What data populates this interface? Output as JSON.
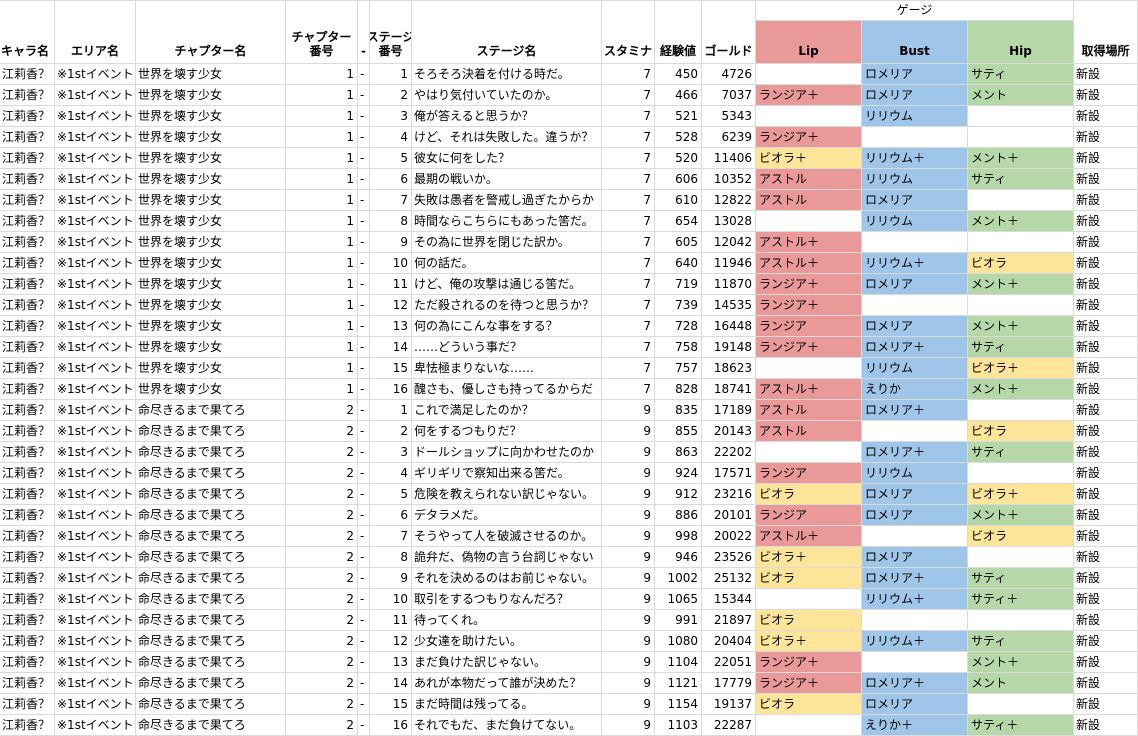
{
  "header": {
    "gauge_title": "ゲージ",
    "columns": {
      "chara": "キャラ名",
      "area": "エリア名",
      "chapter": "チャプター名",
      "chapter_no": "チャプター\n番号",
      "dash": "-",
      "stage_no": "ステージ\n番号",
      "stage": "ステージ名",
      "stamina": "スタミナ",
      "exp": "経験値",
      "gold": "ゴールド",
      "lip": "Lip",
      "bust": "Bust",
      "hip": "Hip",
      "acquire": "取得場所"
    }
  },
  "colors": {
    "lip": "#ea9999",
    "bust": "#9fc5e8",
    "hip": "#b6d7a8",
    "yellow": "#ffe599",
    "grid": "#dadada"
  },
  "rows": [
    {
      "chara": "江莉香？",
      "area": "※1stイベント",
      "chapter": "世界を壊す少女",
      "ch": "1",
      "dash": "-",
      "st": "1",
      "stage": "そろそろ決着を付ける時だ。",
      "sta": "7",
      "exp": "450",
      "gold": "4726",
      "lip": "",
      "lipc": "",
      "bust": "ロメリア",
      "bustc": "b",
      "hip": "サティ",
      "hipc": "h",
      "acq": "新設"
    },
    {
      "chara": "江莉香？",
      "area": "※1stイベント",
      "chapter": "世界を壊す少女",
      "ch": "1",
      "dash": "-",
      "st": "2",
      "stage": "やはり気付いていたのか。",
      "sta": "7",
      "exp": "466",
      "gold": "7037",
      "lip": "ランジア＋",
      "lipc": "l",
      "bust": "ロメリア",
      "bustc": "b",
      "hip": "メント",
      "hipc": "h",
      "acq": "新設"
    },
    {
      "chara": "江莉香？",
      "area": "※1stイベント",
      "chapter": "世界を壊す少女",
      "ch": "1",
      "dash": "-",
      "st": "3",
      "stage": "俺が答えると思うか？",
      "sta": "7",
      "exp": "521",
      "gold": "5343",
      "lip": "",
      "lipc": "",
      "bust": "リリウム",
      "bustc": "b",
      "hip": "",
      "hipc": "",
      "acq": "新設"
    },
    {
      "chara": "江莉香？",
      "area": "※1stイベント",
      "chapter": "世界を壊す少女",
      "ch": "1",
      "dash": "-",
      "st": "4",
      "stage": "けど、それは失敗した。違うか？",
      "sta": "7",
      "exp": "528",
      "gold": "6239",
      "lip": "ランジア＋",
      "lipc": "l",
      "bust": "",
      "bustc": "",
      "hip": "",
      "hipc": "",
      "acq": "新設"
    },
    {
      "chara": "江莉香？",
      "area": "※1stイベント",
      "chapter": "世界を壊す少女",
      "ch": "1",
      "dash": "-",
      "st": "5",
      "stage": "彼女に何をした？",
      "sta": "7",
      "exp": "520",
      "gold": "11406",
      "lip": "ビオラ＋",
      "lipc": "y",
      "bust": "リリウム＋",
      "bustc": "b",
      "hip": "メント＋",
      "hipc": "h",
      "acq": "新設"
    },
    {
      "chara": "江莉香？",
      "area": "※1stイベント",
      "chapter": "世界を壊す少女",
      "ch": "1",
      "dash": "-",
      "st": "6",
      "stage": "最期の戦いか。",
      "sta": "7",
      "exp": "606",
      "gold": "10352",
      "lip": "アストル",
      "lipc": "l",
      "bust": "リリウム",
      "bustc": "b",
      "hip": "サティ",
      "hipc": "h",
      "acq": "新設"
    },
    {
      "chara": "江莉香？",
      "area": "※1stイベント",
      "chapter": "世界を壊す少女",
      "ch": "1",
      "dash": "-",
      "st": "7",
      "stage": "失敗は愚者を警戒し過ぎたからか",
      "sta": "7",
      "exp": "610",
      "gold": "12822",
      "lip": "アストル",
      "lipc": "l",
      "bust": "ロメリア",
      "bustc": "b",
      "hip": "",
      "hipc": "",
      "acq": "新設"
    },
    {
      "chara": "江莉香？",
      "area": "※1stイベント",
      "chapter": "世界を壊す少女",
      "ch": "1",
      "dash": "-",
      "st": "8",
      "stage": "時間ならこちらにもあった筈だ。",
      "sta": "7",
      "exp": "654",
      "gold": "13028",
      "lip": "",
      "lipc": "",
      "bust": "リリウム",
      "bustc": "b",
      "hip": "メント＋",
      "hipc": "h",
      "acq": "新設"
    },
    {
      "chara": "江莉香？",
      "area": "※1stイベント",
      "chapter": "世界を壊す少女",
      "ch": "1",
      "dash": "-",
      "st": "9",
      "stage": "その為に世界を閉じた訳か。",
      "sta": "7",
      "exp": "605",
      "gold": "12042",
      "lip": "アストル＋",
      "lipc": "l",
      "bust": "",
      "bustc": "",
      "hip": "",
      "hipc": "",
      "acq": "新設"
    },
    {
      "chara": "江莉香？",
      "area": "※1stイベント",
      "chapter": "世界を壊す少女",
      "ch": "1",
      "dash": "-",
      "st": "10",
      "stage": "何の話だ。",
      "sta": "7",
      "exp": "640",
      "gold": "11946",
      "lip": "アストル＋",
      "lipc": "l",
      "bust": "リリウム＋",
      "bustc": "b",
      "hip": "ビオラ",
      "hipc": "y",
      "acq": "新設"
    },
    {
      "chara": "江莉香？",
      "area": "※1stイベント",
      "chapter": "世界を壊す少女",
      "ch": "1",
      "dash": "-",
      "st": "11",
      "stage": "けど、俺の攻撃は通じる筈だ。",
      "sta": "7",
      "exp": "719",
      "gold": "11870",
      "lip": "ランジア＋",
      "lipc": "l",
      "bust": "ロメリア",
      "bustc": "b",
      "hip": "メント＋",
      "hipc": "h",
      "acq": "新設"
    },
    {
      "chara": "江莉香？",
      "area": "※1stイベント",
      "chapter": "世界を壊す少女",
      "ch": "1",
      "dash": "-",
      "st": "12",
      "stage": "ただ殺されるのを待つと思うか？",
      "sta": "7",
      "exp": "739",
      "gold": "14535",
      "lip": "ランジア＋",
      "lipc": "l",
      "bust": "",
      "bustc": "",
      "hip": "",
      "hipc": "",
      "acq": "新設"
    },
    {
      "chara": "江莉香？",
      "area": "※1stイベント",
      "chapter": "世界を壊す少女",
      "ch": "1",
      "dash": "-",
      "st": "13",
      "stage": "何の為にこんな事をする？",
      "sta": "7",
      "exp": "728",
      "gold": "16448",
      "lip": "ランジア",
      "lipc": "l",
      "bust": "ロメリア",
      "bustc": "b",
      "hip": "メント＋",
      "hipc": "h",
      "acq": "新設"
    },
    {
      "chara": "江莉香？",
      "area": "※1stイベント",
      "chapter": "世界を壊す少女",
      "ch": "1",
      "dash": "-",
      "st": "14",
      "stage": "……どういう事だ？",
      "sta": "7",
      "exp": "758",
      "gold": "19148",
      "lip": "ランジア＋",
      "lipc": "l",
      "bust": "ロメリア＋",
      "bustc": "b",
      "hip": "サティ",
      "hipc": "h",
      "acq": "新設"
    },
    {
      "chara": "江莉香？",
      "area": "※1stイベント",
      "chapter": "世界を壊す少女",
      "ch": "1",
      "dash": "-",
      "st": "15",
      "stage": "卑怯極まりないな……",
      "sta": "7",
      "exp": "757",
      "gold": "18623",
      "lip": "",
      "lipc": "",
      "bust": "リリウム",
      "bustc": "b",
      "hip": "ビオラ＋",
      "hipc": "y",
      "acq": "新設"
    },
    {
      "chara": "江莉香？",
      "area": "※1stイベント",
      "chapter": "世界を壊す少女",
      "ch": "1",
      "dash": "-",
      "st": "16",
      "stage": "醜さも、優しさも持ってるからだ",
      "sta": "7",
      "exp": "828",
      "gold": "18741",
      "lip": "アストル＋",
      "lipc": "l",
      "bust": "えりか",
      "bustc": "b",
      "hip": "メント＋",
      "hipc": "h",
      "acq": "新設"
    },
    {
      "chara": "江莉香？",
      "area": "※1stイベント",
      "chapter": "命尽きるまで果てろ",
      "ch": "2",
      "dash": "-",
      "st": "1",
      "stage": "これで満足したのか？",
      "sta": "9",
      "exp": "835",
      "gold": "17189",
      "lip": "アストル",
      "lipc": "l",
      "bust": "ロメリア＋",
      "bustc": "b",
      "hip": "",
      "hipc": "",
      "acq": "新設"
    },
    {
      "chara": "江莉香？",
      "area": "※1stイベント",
      "chapter": "命尽きるまで果てろ",
      "ch": "2",
      "dash": "-",
      "st": "2",
      "stage": "何をするつもりだ？",
      "sta": "9",
      "exp": "855",
      "gold": "20143",
      "lip": "アストル",
      "lipc": "l",
      "bust": "",
      "bustc": "",
      "hip": "ビオラ",
      "hipc": "y",
      "acq": "新設"
    },
    {
      "chara": "江莉香？",
      "area": "※1stイベント",
      "chapter": "命尽きるまで果てろ",
      "ch": "2",
      "dash": "-",
      "st": "3",
      "stage": "ドールショップに向かわせたのか",
      "sta": "9",
      "exp": "863",
      "gold": "22202",
      "lip": "",
      "lipc": "",
      "bust": "ロメリア＋",
      "bustc": "b",
      "hip": "サティ",
      "hipc": "h",
      "acq": "新設"
    },
    {
      "chara": "江莉香？",
      "area": "※1stイベント",
      "chapter": "命尽きるまで果てろ",
      "ch": "2",
      "dash": "-",
      "st": "4",
      "stage": "ギリギリで察知出来る筈だ。",
      "sta": "9",
      "exp": "924",
      "gold": "17571",
      "lip": "ランジア",
      "lipc": "l",
      "bust": "リリウム",
      "bustc": "b",
      "hip": "",
      "hipc": "",
      "acq": "新設"
    },
    {
      "chara": "江莉香？",
      "area": "※1stイベント",
      "chapter": "命尽きるまで果てろ",
      "ch": "2",
      "dash": "-",
      "st": "5",
      "stage": "危険を教えられない訳じゃない。",
      "sta": "9",
      "exp": "912",
      "gold": "23216",
      "lip": "ビオラ",
      "lipc": "y",
      "bust": "ロメリア",
      "bustc": "b",
      "hip": "ビオラ＋",
      "hipc": "y",
      "acq": "新設"
    },
    {
      "chara": "江莉香？",
      "area": "※1stイベント",
      "chapter": "命尽きるまで果てろ",
      "ch": "2",
      "dash": "-",
      "st": "6",
      "stage": "デタラメだ。",
      "sta": "9",
      "exp": "886",
      "gold": "20101",
      "lip": "ランジア",
      "lipc": "l",
      "bust": "ロメリア",
      "bustc": "b",
      "hip": "メント＋",
      "hipc": "h",
      "acq": "新設"
    },
    {
      "chara": "江莉香？",
      "area": "※1stイベント",
      "chapter": "命尽きるまで果てろ",
      "ch": "2",
      "dash": "-",
      "st": "7",
      "stage": "そうやって人を破滅させるのか。",
      "sta": "9",
      "exp": "998",
      "gold": "20022",
      "lip": "アストル＋",
      "lipc": "l",
      "bust": "",
      "bustc": "",
      "hip": "ビオラ",
      "hipc": "y",
      "acq": "新設"
    },
    {
      "chara": "江莉香？",
      "area": "※1stイベント",
      "chapter": "命尽きるまで果てろ",
      "ch": "2",
      "dash": "-",
      "st": "8",
      "stage": "詭弁だ、偽物の言う台詞じゃない",
      "sta": "9",
      "exp": "946",
      "gold": "23526",
      "lip": "ビオラ＋",
      "lipc": "y",
      "bust": "ロメリア",
      "bustc": "b",
      "hip": "",
      "hipc": "",
      "acq": "新設"
    },
    {
      "chara": "江莉香？",
      "area": "※1stイベント",
      "chapter": "命尽きるまで果てろ",
      "ch": "2",
      "dash": "-",
      "st": "9",
      "stage": "それを決めるのはお前じゃない。",
      "sta": "9",
      "exp": "1002",
      "gold": "25132",
      "lip": "ビオラ",
      "lipc": "y",
      "bust": "ロメリア＋",
      "bustc": "b",
      "hip": "サティ",
      "hipc": "h",
      "acq": "新設"
    },
    {
      "chara": "江莉香？",
      "area": "※1stイベント",
      "chapter": "命尽きるまで果てろ",
      "ch": "2",
      "dash": "-",
      "st": "10",
      "stage": "取引をするつもりなんだろ？",
      "sta": "9",
      "exp": "1065",
      "gold": "15344",
      "lip": "",
      "lipc": "",
      "bust": "リリウム＋",
      "bustc": "b",
      "hip": "サティ＋",
      "hipc": "h",
      "acq": "新設"
    },
    {
      "chara": "江莉香？",
      "area": "※1stイベント",
      "chapter": "命尽きるまで果てろ",
      "ch": "2",
      "dash": "-",
      "st": "11",
      "stage": "待ってくれ。",
      "sta": "9",
      "exp": "991",
      "gold": "21897",
      "lip": "ビオラ",
      "lipc": "y",
      "bust": "",
      "bustc": "",
      "hip": "",
      "hipc": "",
      "acq": "新設"
    },
    {
      "chara": "江莉香？",
      "area": "※1stイベント",
      "chapter": "命尽きるまで果てろ",
      "ch": "2",
      "dash": "-",
      "st": "12",
      "stage": "少女達を助けたい。",
      "sta": "9",
      "exp": "1080",
      "gold": "20404",
      "lip": "ビオラ＋",
      "lipc": "y",
      "bust": "リリウム＋",
      "bustc": "b",
      "hip": "サティ",
      "hipc": "h",
      "acq": "新設"
    },
    {
      "chara": "江莉香？",
      "area": "※1stイベント",
      "chapter": "命尽きるまで果てろ",
      "ch": "2",
      "dash": "-",
      "st": "13",
      "stage": "まだ負けた訳じゃない。",
      "sta": "9",
      "exp": "1104",
      "gold": "22051",
      "lip": "ランジア＋",
      "lipc": "l",
      "bust": "",
      "bustc": "",
      "hip": "メント＋",
      "hipc": "h",
      "acq": "新設"
    },
    {
      "chara": "江莉香？",
      "area": "※1stイベント",
      "chapter": "命尽きるまで果てろ",
      "ch": "2",
      "dash": "-",
      "st": "14",
      "stage": "あれが本物だって誰が決めた？",
      "sta": "9",
      "exp": "1121",
      "gold": "17779",
      "lip": "ランジア＋",
      "lipc": "l",
      "bust": "ロメリア＋",
      "bustc": "b",
      "hip": "メント",
      "hipc": "h",
      "acq": "新設"
    },
    {
      "chara": "江莉香？",
      "area": "※1stイベント",
      "chapter": "命尽きるまで果てろ",
      "ch": "2",
      "dash": "-",
      "st": "15",
      "stage": "まだ時間は残ってる。",
      "sta": "9",
      "exp": "1154",
      "gold": "19137",
      "lip": "ビオラ",
      "lipc": "y",
      "bust": "ロメリア",
      "bustc": "b",
      "hip": "",
      "hipc": "",
      "acq": "新設"
    },
    {
      "chara": "江莉香？",
      "area": "※1stイベント",
      "chapter": "命尽きるまで果てろ",
      "ch": "2",
      "dash": "-",
      "st": "16",
      "stage": "それでもだ、まだ負けてない。",
      "sta": "9",
      "exp": "1103",
      "gold": "22287",
      "lip": "",
      "lipc": "",
      "bust": "えりか＋",
      "bustc": "b",
      "hip": "サティ＋",
      "hipc": "h",
      "acq": "新設"
    }
  ]
}
